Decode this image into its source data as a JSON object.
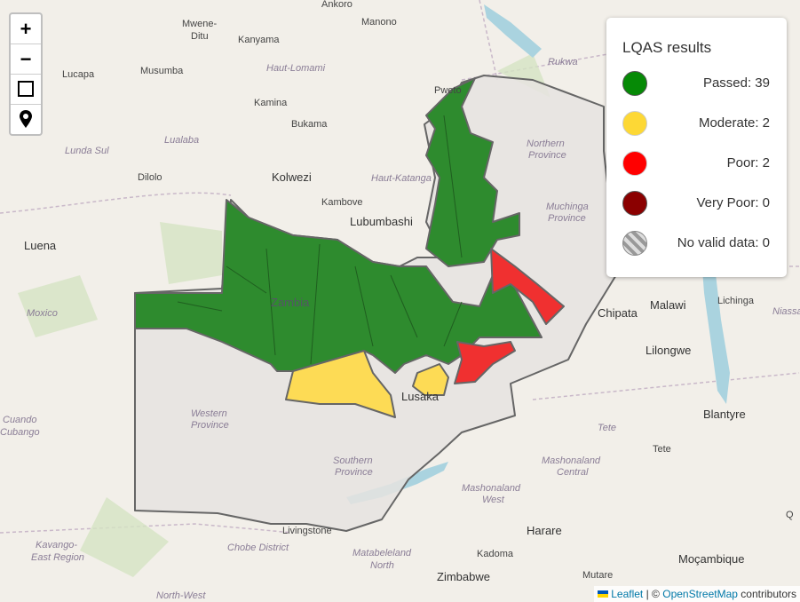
{
  "controls": {
    "zoom_in": "+",
    "zoom_out": "−"
  },
  "legend": {
    "title": "LQAS results",
    "items": [
      "Passed: 39",
      "Moderate: 2",
      "Poor: 2",
      "Very Poor: 0",
      "No valid data: 0"
    ]
  },
  "map": {
    "labels": [
      "Ankoro",
      "Manono",
      "Mwene-",
      "Ditu",
      "Kanyama",
      "Lucapa",
      "Musumba",
      "Haut-Lomami",
      "Rukwa",
      "Kamina",
      "Bukama",
      "Lualaba",
      "Lunda Sul",
      "Northern",
      "Province",
      "Dilolo",
      "Kolwezi",
      "Haut-Katanga",
      "Kambove",
      "Lubumbashi",
      "Muchinga",
      "Province",
      "Luena",
      "Zambia",
      "Chipata",
      "Malawi",
      "Lichinga",
      "Niassa",
      "Moxico",
      "Lilongwe",
      "Cuando",
      "Cubango",
      "Western",
      "Province",
      "Lusaka",
      "Blantyre",
      "Tete",
      "Tete",
      "Southern",
      "Province",
      "Mashonaland",
      "Central",
      "Mashonaland",
      "West",
      "Livingstone",
      "Harare",
      "Kavango-",
      "East Region",
      "Chobe District",
      "Matabeleland",
      "North",
      "Kadoma",
      "Moçambique",
      "Zimbabwe",
      "Mutare",
      "North-West",
      "Pweto",
      "Q"
    ]
  },
  "attribution": {
    "link1": "Leaflet",
    "separator": "| ©",
    "link2": "OpenStreetMap",
    "suffix": "contributors"
  }
}
